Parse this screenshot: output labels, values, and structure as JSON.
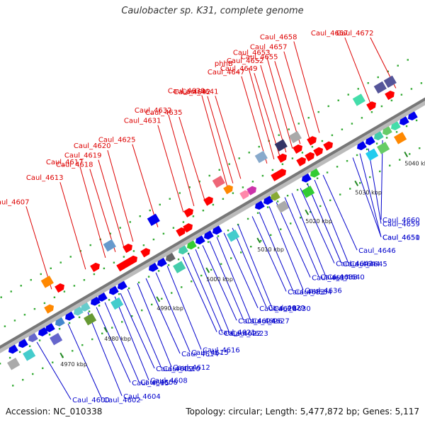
{
  "title": "Caulobacter sp. K31, complete genome",
  "footer": {
    "accession": "Accession: NC_010338",
    "stats": "Topology: circular; Length: 5,477,872 bp; Genes: 5,117"
  },
  "colors": {
    "forward": "#ff0000",
    "reverse": "#0000ee",
    "backbone": "#999999",
    "top_label": "#dd0000",
    "bottom_label": "#0000cc"
  },
  "kbp_ticks": [
    {
      "label": "4970 kbp",
      "pos": 60
    },
    {
      "label": "4980 kbp",
      "pos": 122
    },
    {
      "label": "4990 kbp",
      "pos": 196
    },
    {
      "label": "5000 kbp",
      "pos": 266
    },
    {
      "label": "5010 kbp",
      "pos": 338
    },
    {
      "label": "5020 kbp",
      "pos": 406
    },
    {
      "label": "5030 kbp",
      "pos": 476
    },
    {
      "label": "5040 kbp",
      "pos": 546
    }
  ],
  "top_labels": [
    {
      "text": "Caul_4607",
      "pos": 90
    },
    {
      "text": "Caul_4613",
      "pos": 138
    },
    {
      "text": "Caul_4617",
      "pos": 166
    },
    {
      "text": "Caul_4618",
      "pos": 180
    },
    {
      "text": "Caul_4619",
      "pos": 192
    },
    {
      "text": "Caul_4620",
      "pos": 205
    },
    {
      "text": "Caul_4625",
      "pos": 240
    },
    {
      "text": "Caul_4631",
      "pos": 276
    },
    {
      "text": "Caul_4632",
      "pos": 291
    },
    {
      "text": "Caul_4635",
      "pos": 306
    },
    {
      "text": "Caul_4642",
      "pos": 346
    },
    {
      "text": "Caul_4639",
      "pos": 338
    },
    {
      "text": "Caul_4641",
      "pos": 357
    },
    {
      "text": "Caul_4647",
      "pos": 394
    },
    {
      "text": "phhB",
      "pos": 404
    },
    {
      "text": "Caul_4649",
      "pos": 412
    },
    {
      "text": "Caul_4652",
      "pos": 421
    },
    {
      "text": "Caul_4653",
      "pos": 430
    },
    {
      "text": "Caul_4655",
      "pos": 441
    },
    {
      "text": "Caul_4657",
      "pos": 454
    },
    {
      "text": "Caul_4658",
      "pos": 468
    },
    {
      "text": "Caul_4667",
      "pos": 540
    },
    {
      "text": "Caul_4672",
      "pos": 576
    }
  ],
  "bottom_labels": [
    {
      "text": "Caul_4600",
      "pos": 42
    },
    {
      "text": "Caul_4602",
      "pos": 86
    },
    {
      "text": "Caul_4604",
      "pos": 114
    },
    {
      "text": "Caul_4605",
      "pos": 126
    },
    {
      "text": "Caul_4606",
      "pos": 138
    },
    {
      "text": "Caul_4608",
      "pos": 152
    },
    {
      "text": "Caul_4609",
      "pos": 160
    },
    {
      "text": "Caul_4610",
      "pos": 170
    },
    {
      "text": "Caul_4612",
      "pos": 184
    },
    {
      "text": "Caul_4614",
      "pos": 196
    },
    {
      "text": "Caul_4615",
      "pos": 210
    },
    {
      "text": "Caul_4616",
      "pos": 226
    },
    {
      "text": "Caul_4621",
      "pos": 248
    },
    {
      "text": "Caul_4622",
      "pos": 256
    },
    {
      "text": "Caul_4623",
      "pos": 266
    },
    {
      "text": "Caul_4624",
      "pos": 276
    },
    {
      "text": "Caul_4626",
      "pos": 286
    },
    {
      "text": "Caul_4627",
      "pos": 296
    },
    {
      "text": "Caul_4628",
      "pos": 306
    },
    {
      "text": "Caul_4629",
      "pos": 318
    },
    {
      "text": "Caul_4630",
      "pos": 326
    },
    {
      "text": "Caul_4633",
      "pos": 346
    },
    {
      "text": "Caul_4634",
      "pos": 356
    },
    {
      "text": "Caul_4636",
      "pos": 370
    },
    {
      "text": "Caul_4637",
      "pos": 380
    },
    {
      "text": "Caul_4638",
      "pos": 392
    },
    {
      "text": "Caul_4640",
      "pos": 402
    },
    {
      "text": "Caul_4643",
      "pos": 414
    },
    {
      "text": "Caul_4644",
      "pos": 424
    },
    {
      "text": "Caul_4645",
      "pos": 434
    },
    {
      "text": "Caul_4646",
      "pos": 446
    },
    {
      "text": "Caul_4650",
      "pos": 488
    },
    {
      "text": "Caul_4651",
      "pos": 498
    },
    {
      "text": "Caul_4659",
      "pos": 510
    },
    {
      "text": "Caul_4660",
      "pos": 530
    }
  ],
  "features": {
    "fwd_outer": [
      {
        "pos": 8,
        "color": "#ff0000"
      },
      {
        "pos": 100,
        "color": "#ff0000"
      },
      {
        "pos": 150,
        "color": "#ff0000"
      },
      {
        "pos": 196,
        "color": "#ff0000"
      },
      {
        "pos": 282,
        "color": "#ff0000"
      },
      {
        "pos": 310,
        "color": "#ff0000"
      },
      {
        "pos": 338,
        "color": "#ff8800"
      },
      {
        "pos": 414,
        "color": "#ff0000"
      },
      {
        "pos": 436,
        "color": "#ff0000"
      },
      {
        "pos": 456,
        "color": "#ff0000"
      },
      {
        "pos": 540,
        "color": "#ff0000"
      },
      {
        "pos": 566,
        "color": "#ff0000"
      }
    ],
    "fwd_inner": [
      {
        "pos": 76,
        "color": "#ff8800"
      },
      {
        "pos": 178,
        "color": "#ff0000"
      },
      {
        "pos": 186,
        "color": "#ff0000"
      },
      {
        "pos": 194,
        "color": "#ff0000"
      },
      {
        "pos": 212,
        "color": "#ff0000"
      },
      {
        "pos": 262,
        "color": "#ff0000"
      },
      {
        "pos": 272,
        "color": "#ff0000"
      },
      {
        "pos": 352,
        "color": "#ff88aa"
      },
      {
        "pos": 362,
        "color": "#cc33aa"
      },
      {
        "pos": 396,
        "color": "#ff0000"
      },
      {
        "pos": 404,
        "color": "#ff0000"
      },
      {
        "pos": 432,
        "color": "#ff0000"
      },
      {
        "pos": 444,
        "color": "#ff0000"
      },
      {
        "pos": 456,
        "color": "#ff0000"
      },
      {
        "pos": 470,
        "color": "#ff0000"
      }
    ],
    "rev_inner": [
      {
        "pos": 12,
        "color": "#0000ee"
      },
      {
        "pos": 26,
        "color": "#0000ee"
      },
      {
        "pos": 40,
        "color": "#6666cc"
      },
      {
        "pos": 54,
        "color": "#0000ee"
      },
      {
        "pos": 64,
        "color": "#0000ee"
      },
      {
        "pos": 78,
        "color": "#4488cc"
      },
      {
        "pos": 92,
        "color": "#0000ee"
      },
      {
        "pos": 104,
        "color": "#66cccc"
      },
      {
        "pos": 114,
        "color": "#66cccc"
      },
      {
        "pos": 128,
        "color": "#0000ee"
      },
      {
        "pos": 138,
        "color": "#0000ee"
      },
      {
        "pos": 154,
        "color": "#0000ee"
      },
      {
        "pos": 166,
        "color": "#0000ee"
      },
      {
        "pos": 210,
        "color": "#0000ee"
      },
      {
        "pos": 222,
        "color": "#0000ee"
      },
      {
        "pos": 234,
        "color": "#666666"
      },
      {
        "pos": 252,
        "color": "#44ccaa"
      },
      {
        "pos": 264,
        "color": "#33cc33"
      },
      {
        "pos": 276,
        "color": "#0000ee"
      },
      {
        "pos": 288,
        "color": "#0000ee"
      },
      {
        "pos": 300,
        "color": "#0000ee"
      },
      {
        "pos": 360,
        "color": "#0000ee"
      },
      {
        "pos": 372,
        "color": "#0000ee"
      },
      {
        "pos": 382,
        "color": "#88aa33"
      },
      {
        "pos": 426,
        "color": "#0000ee"
      },
      {
        "pos": 438,
        "color": "#33cc33"
      },
      {
        "pos": 504,
        "color": "#0000ee"
      },
      {
        "pos": 516,
        "color": "#0000ee"
      },
      {
        "pos": 528,
        "color": "#44ccaa"
      },
      {
        "pos": 540,
        "color": "#66cc66"
      },
      {
        "pos": 552,
        "color": "#44ddaa"
      },
      {
        "pos": 564,
        "color": "#0000ee"
      },
      {
        "pos": 576,
        "color": "#0000ee"
      }
    ],
    "rev_outer": [
      {
        "pos": 4,
        "color": "#aaaaaa"
      },
      {
        "pos": 26,
        "color": "#44cccc"
      },
      {
        "pos": 64,
        "color": "#6666cc"
      },
      {
        "pos": 112,
        "color": "#669933"
      },
      {
        "pos": 150,
        "color": "#44cccc"
      },
      {
        "pos": 238,
        "color": "#44ccaa"
      },
      {
        "pos": 314,
        "color": "#44cccc"
      },
      {
        "pos": 384,
        "color": "#aaaaaa"
      },
      {
        "pos": 420,
        "color": "#33cc33"
      },
      {
        "pos": 510,
        "color": "#22ccee"
      },
      {
        "pos": 526,
        "color": "#66cc66"
      },
      {
        "pos": 550,
        "color": "#ff8800"
      }
    ],
    "far_outer": [
      {
        "pos": 6,
        "color": "#669933"
      },
      {
        "pos": 90,
        "color": "#ff8800"
      },
      {
        "pos": 178,
        "color": "#6699cc"
      },
      {
        "pos": 240,
        "color": "#0000ee"
      },
      {
        "pos": 332,
        "color": "#ee6677"
      },
      {
        "pos": 392,
        "color": "#88aacc"
      },
      {
        "pos": 420,
        "color": "#333366"
      },
      {
        "pos": 440,
        "color": "#aaaaaa"
      },
      {
        "pos": 530,
        "color": "#44ddaa"
      },
      {
        "pos": 560,
        "color": "#555599"
      },
      {
        "pos": 574,
        "color": "#555599"
      }
    ]
  }
}
